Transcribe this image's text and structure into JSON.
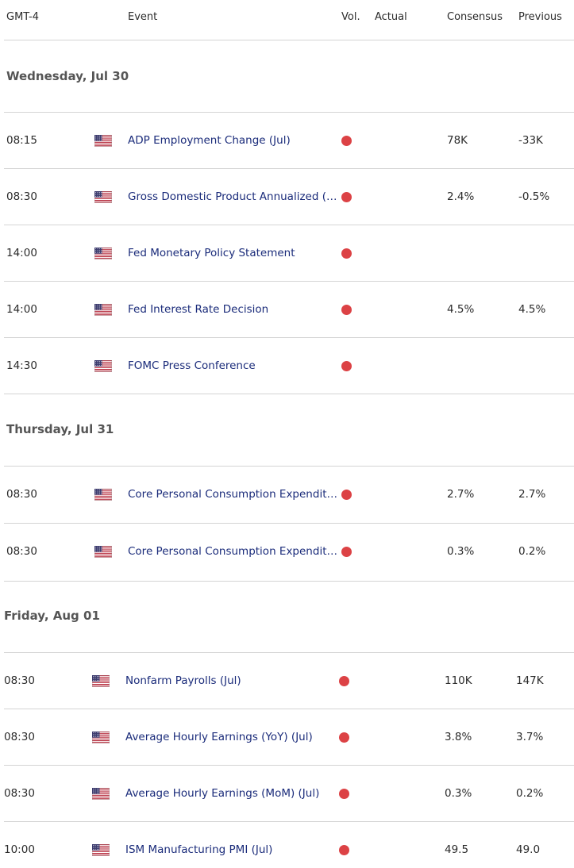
{
  "header": {
    "time": "GMT-4",
    "event": "Event",
    "vol": "Vol.",
    "actual": "Actual",
    "consensus": "Consensus",
    "previous": "Previous"
  },
  "colors": {
    "event_text": "#1a2b7a",
    "volatility_dot": "#dc4245",
    "rule": "#d4d4d4",
    "day_text": "#555555"
  },
  "icons": {
    "flag": "us-flag-icon",
    "volatility": "high-volatility-dot-icon"
  },
  "days": [
    {
      "label": "Wednesday, Jul 30",
      "events": [
        {
          "time": "08:15",
          "name": "ADP Employment Change (Jul)",
          "actual": "",
          "consensus": "78K",
          "previous": "-33K"
        },
        {
          "time": "08:30",
          "name": "Gross Domestic Product Annualized (…",
          "actual": "",
          "consensus": "2.4%",
          "previous": "-0.5%"
        },
        {
          "time": "14:00",
          "name": "Fed Monetary Policy Statement",
          "actual": "",
          "consensus": "",
          "previous": ""
        },
        {
          "time": "14:00",
          "name": "Fed Interest Rate Decision",
          "actual": "",
          "consensus": "4.5%",
          "previous": "4.5%"
        },
        {
          "time": "14:30",
          "name": "FOMC Press Conference",
          "actual": "",
          "consensus": "",
          "previous": ""
        }
      ]
    },
    {
      "label": "Thursday, Jul 31",
      "events": [
        {
          "time": "08:30",
          "name": "Core Personal Consumption Expendit…",
          "actual": "",
          "consensus": "2.7%",
          "previous": "2.7%"
        },
        {
          "time": "08:30",
          "name": "Core Personal Consumption Expendit…",
          "actual": "",
          "consensus": "0.3%",
          "previous": "0.2%"
        }
      ]
    },
    {
      "label": "Friday, Aug 01",
      "events": [
        {
          "time": "08:30",
          "name": "Nonfarm Payrolls (Jul)",
          "actual": "",
          "consensus": "110K",
          "previous": "147K"
        },
        {
          "time": "08:30",
          "name": "Average Hourly Earnings (YoY) (Jul)",
          "actual": "",
          "consensus": "3.8%",
          "previous": "3.7%"
        },
        {
          "time": "08:30",
          "name": "Average Hourly Earnings (MoM) (Jul)",
          "actual": "",
          "consensus": "0.3%",
          "previous": "0.2%"
        },
        {
          "time": "10:00",
          "name": "ISM Manufacturing PMI (Jul)",
          "actual": "",
          "consensus": "49.5",
          "previous": "49.0"
        }
      ]
    }
  ]
}
